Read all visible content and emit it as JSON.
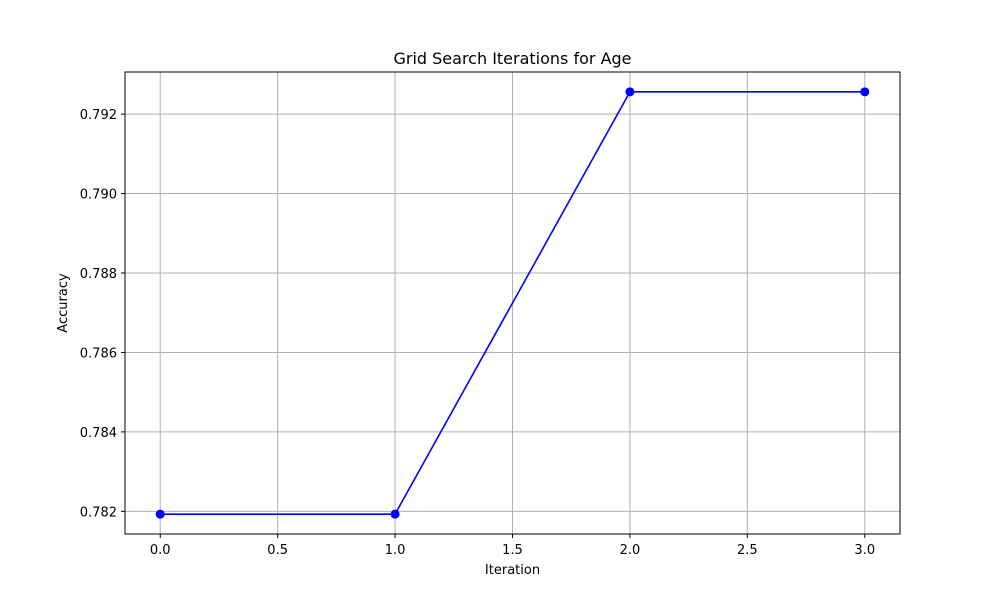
{
  "chart_data": {
    "type": "line",
    "title": "Grid Search Iterations for Age",
    "xlabel": "Iteration",
    "ylabel": "Accuracy",
    "x": [
      0,
      1,
      2,
      3
    ],
    "series": [
      {
        "values": [
          0.78193,
          0.78193,
          0.79256,
          0.79256
        ],
        "color": "#0000ff",
        "marker": "circle"
      }
    ],
    "xlim": [
      -0.15,
      3.15
    ],
    "ylim": [
      0.78143,
      0.79306
    ],
    "xticks": [
      0.0,
      0.5,
      1.0,
      1.5,
      2.0,
      2.5,
      3.0
    ],
    "xtick_labels": [
      "0.0",
      "0.5",
      "1.0",
      "1.5",
      "2.0",
      "2.5",
      "3.0"
    ],
    "yticks": [
      0.782,
      0.784,
      0.786,
      0.788,
      0.79,
      0.792
    ],
    "ytick_labels": [
      "0.782",
      "0.784",
      "0.786",
      "0.788",
      "0.790",
      "0.792"
    ],
    "grid": true,
    "grid_color": "#b0b0b0"
  }
}
